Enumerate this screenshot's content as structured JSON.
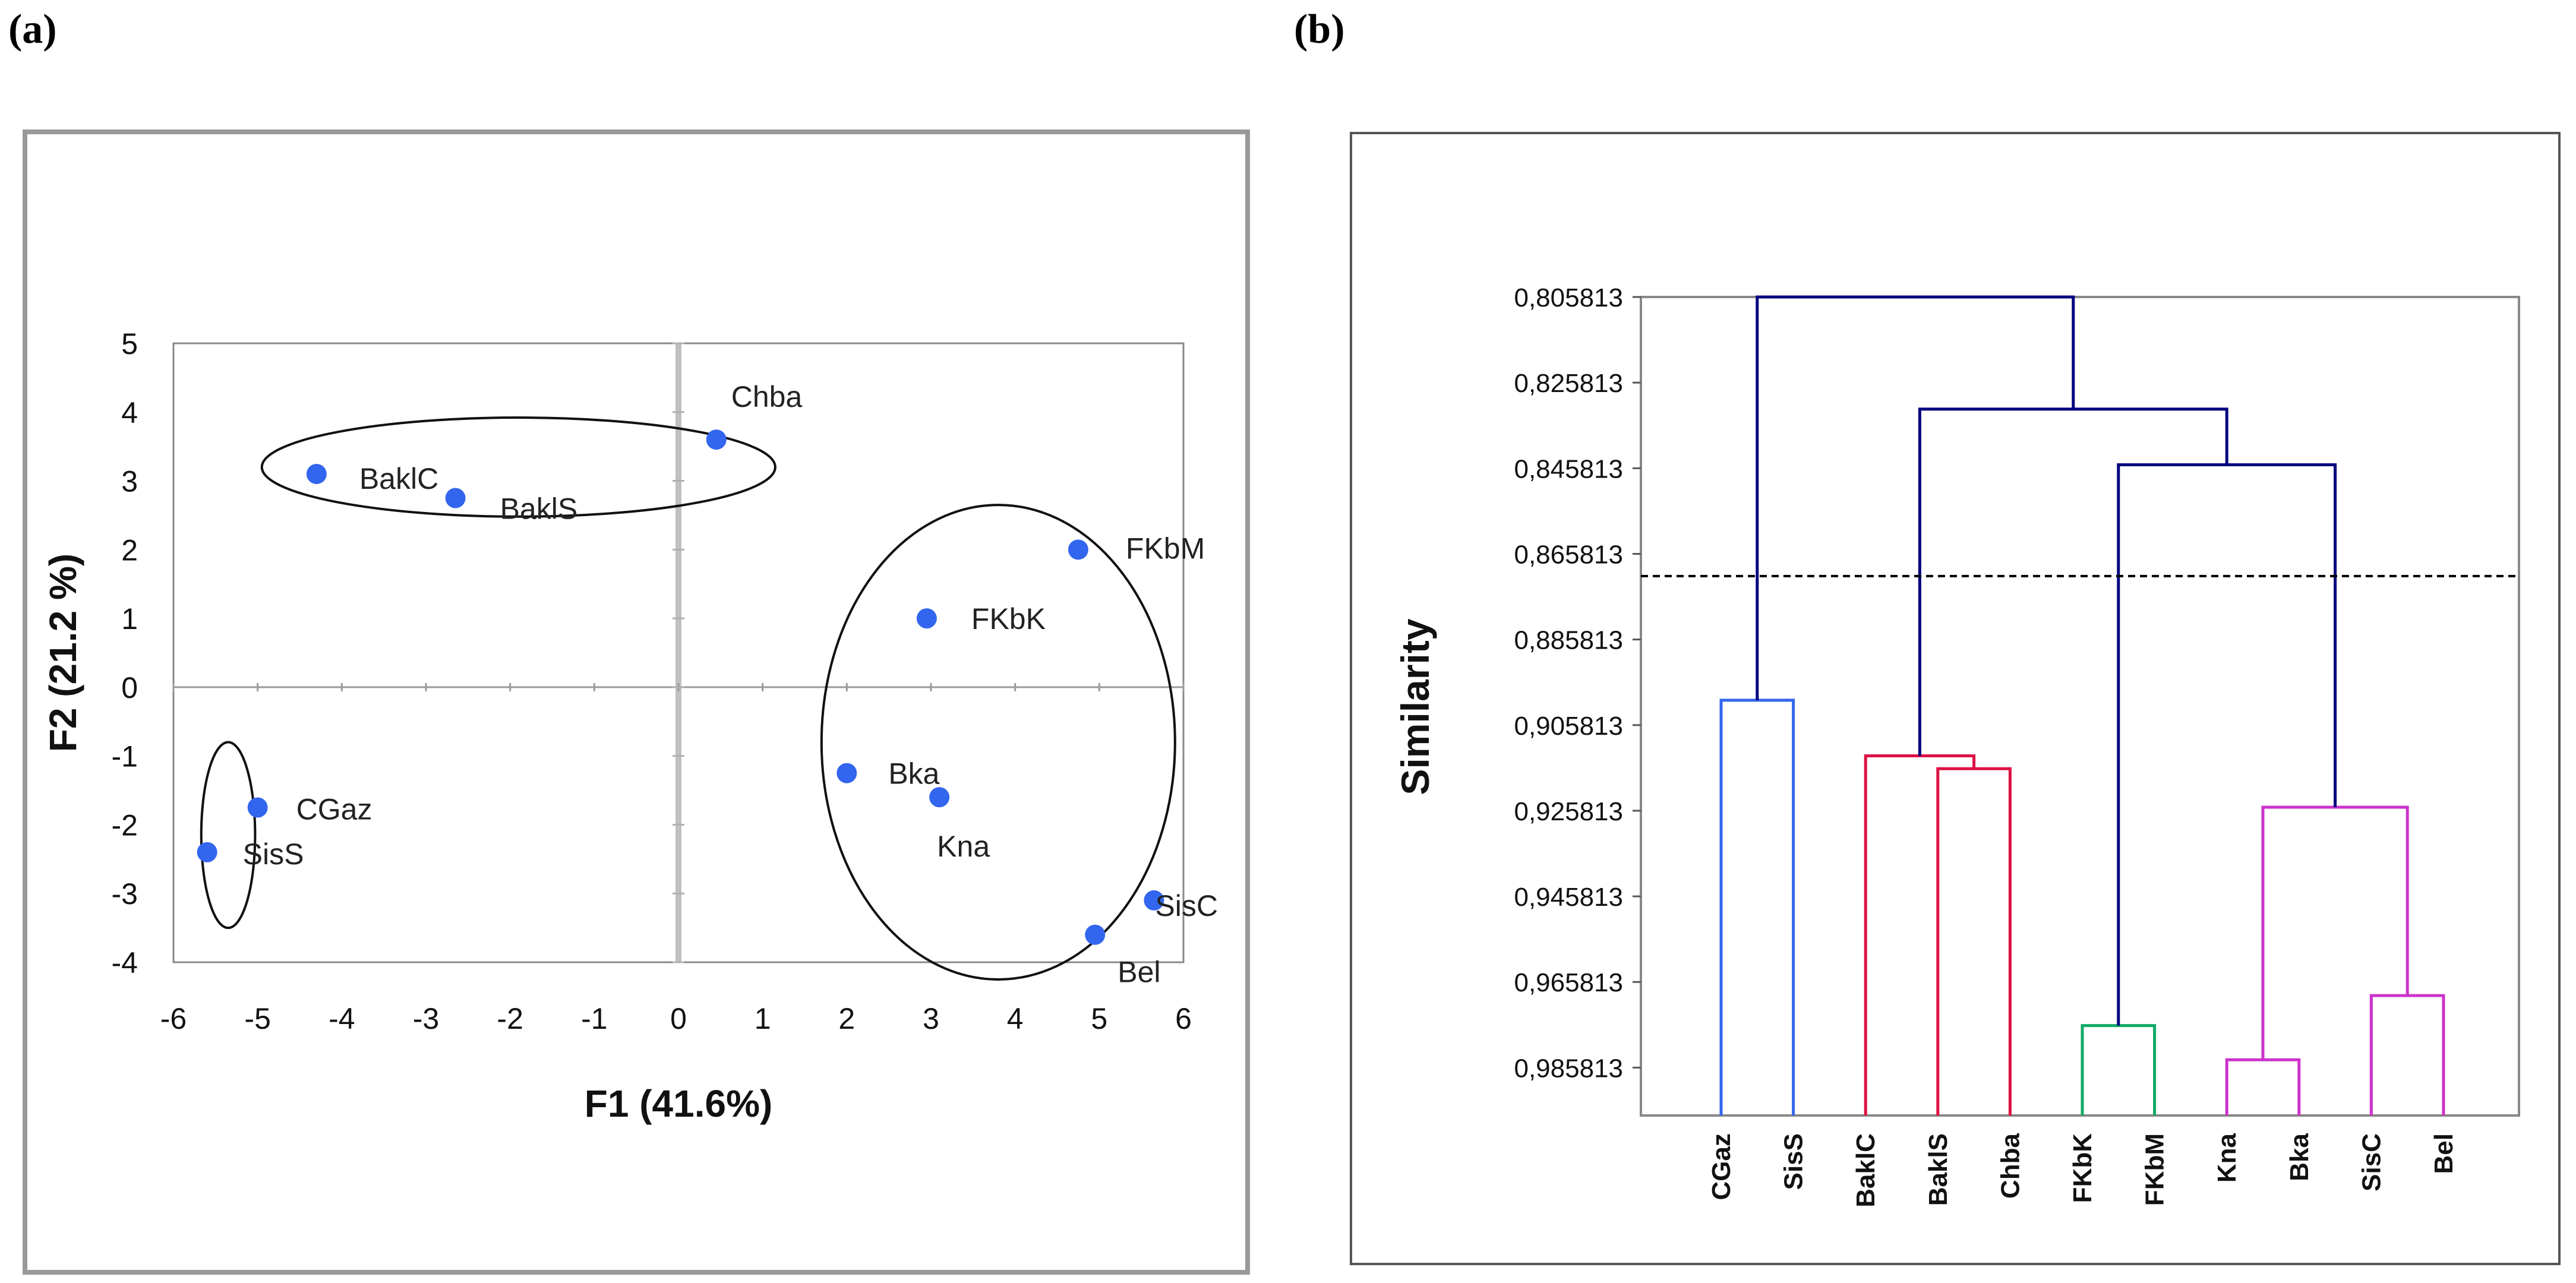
{
  "panels": {
    "a_label": "(a)",
    "b_label": "(b)"
  },
  "chart_data": [
    {
      "type": "scatter",
      "title": "",
      "xlabel": "F1 (41.6%)",
      "ylabel": "F2 (21.2 %)",
      "xlim": [
        -6,
        6
      ],
      "ylim": [
        -4,
        5
      ],
      "xticks": [
        "-6",
        "-5",
        "-4",
        "-3",
        "-2",
        "-1",
        "0",
        "1",
        "2",
        "3",
        "4",
        "5",
        "6"
      ],
      "yticks": [
        "-4",
        "-3",
        "-2",
        "-1",
        "0",
        "1",
        "2",
        "3",
        "4",
        "5"
      ],
      "point_color": "#3366ee",
      "points": [
        {
          "name": "Chba",
          "x": 0.45,
          "y": 3.6
        },
        {
          "name": "BaklC",
          "x": -4.3,
          "y": 3.1
        },
        {
          "name": "BaklS",
          "x": -2.65,
          "y": 2.75
        },
        {
          "name": "FKbM",
          "x": 4.75,
          "y": 2.0
        },
        {
          "name": "FKbK",
          "x": 2.95,
          "y": 1.0
        },
        {
          "name": "Bka",
          "x": 2.0,
          "y": -1.25
        },
        {
          "name": "Kna",
          "x": 3.1,
          "y": -1.6
        },
        {
          "name": "CGaz",
          "x": -5.0,
          "y": -1.75
        },
        {
          "name": "SisS",
          "x": -5.6,
          "y": -2.4
        },
        {
          "name": "SisC",
          "x": 5.65,
          "y": -3.1
        },
        {
          "name": "Bel",
          "x": 4.95,
          "y": -3.6
        }
      ],
      "group_ellipses": [
        {
          "members": [
            "BaklC",
            "BaklS",
            "Chba"
          ],
          "cx": -1.9,
          "cy": 3.2,
          "rx": 3.05,
          "ry": 0.72
        },
        {
          "members": [
            "FKbM",
            "FKbK",
            "Bka",
            "Kna",
            "SisC",
            "Bel"
          ],
          "cx": 3.8,
          "cy": -0.8,
          "rx": 2.1,
          "ry": 3.45
        },
        {
          "members": [
            "CGaz",
            "SisS"
          ],
          "cx": -5.35,
          "cy": -2.15,
          "rx": 0.32,
          "ry": 1.35
        }
      ]
    },
    {
      "type": "dendrogram",
      "title": "",
      "ylabel": "Similarity",
      "ylim": [
        0.805813,
        0.997
      ],
      "yticks": [
        0.805813,
        0.825813,
        0.845813,
        0.865813,
        0.885813,
        0.905813,
        0.925813,
        0.945813,
        0.965813,
        0.985813
      ],
      "ytick_labels": [
        "0,805813",
        "0,825813",
        "0,845813",
        "0,865813",
        "0,885813",
        "0,905813",
        "0,925813",
        "0,945813",
        "0,965813",
        "0,985813"
      ],
      "cut_line": 0.871,
      "leaves": [
        "CGaz",
        "SisS",
        "BaklC",
        "BaklS",
        "Chba",
        "FKbK",
        "FKbM",
        "Kna",
        "Bka",
        "SisC",
        "Bel"
      ],
      "merges": [
        {
          "left": [
            "CGaz"
          ],
          "right": [
            "SisS"
          ],
          "height": 0.9,
          "color": "#3366ee"
        },
        {
          "left": [
            "BaklS"
          ],
          "right": [
            "Chba"
          ],
          "height": 0.916,
          "color": "#dd1144"
        },
        {
          "left": [
            "BaklC"
          ],
          "right": [
            "BaklS",
            "Chba"
          ],
          "height": 0.913,
          "color": "#dd1144"
        },
        {
          "left": [
            "FKbK"
          ],
          "right": [
            "FKbM"
          ],
          "height": 0.976,
          "color": "#11aa66"
        },
        {
          "left": [
            "Kna"
          ],
          "right": [
            "Bka"
          ],
          "height": 0.984,
          "color": "#cc33cc"
        },
        {
          "left": [
            "SisC"
          ],
          "right": [
            "Bel"
          ],
          "height": 0.969,
          "color": "#cc33cc"
        },
        {
          "left": [
            "Kna",
            "Bka"
          ],
          "right": [
            "SisC",
            "Bel"
          ],
          "height": 0.925,
          "color": "#cc33cc"
        },
        {
          "left": [
            "FKbK",
            "FKbM"
          ],
          "right": [
            "Kna",
            "Bka",
            "SisC",
            "Bel"
          ],
          "height": 0.845,
          "color": "#000080"
        },
        {
          "left": [
            "BaklC",
            "BaklS",
            "Chba"
          ],
          "right": [
            "FKbK",
            "FKbM",
            "Kna",
            "Bka",
            "SisC",
            "Bel"
          ],
          "height": 0.832,
          "color": "#000080"
        },
        {
          "left": [
            "CGaz",
            "SisS"
          ],
          "right": [
            "BaklC",
            "BaklS",
            "Chba",
            "FKbK",
            "FKbM",
            "Kna",
            "Bka",
            "SisC",
            "Bel"
          ],
          "height": 0.805813,
          "color": "#000080"
        }
      ]
    }
  ]
}
